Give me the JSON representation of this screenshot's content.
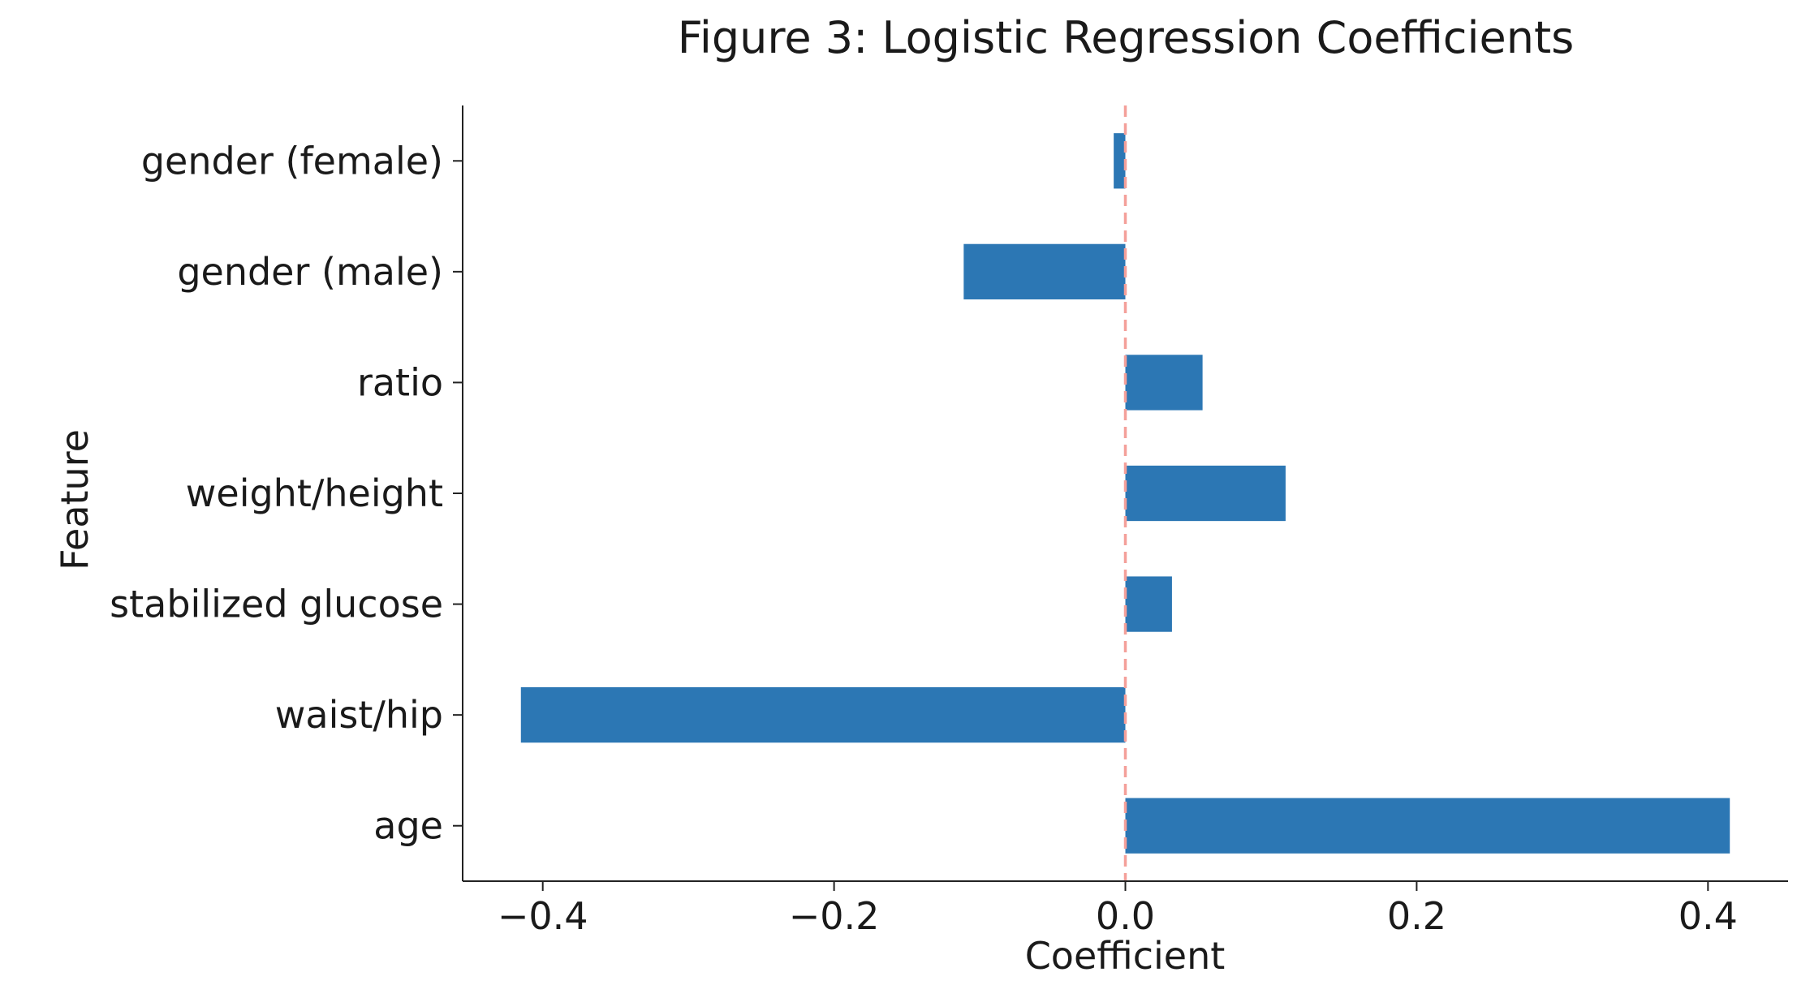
{
  "chart_data": {
    "type": "bar",
    "orientation": "horizontal",
    "title": "Figure 3: Logistic Regression Coefficients",
    "xlabel": "Coefficient",
    "ylabel": "Feature",
    "categories": [
      "age",
      "waist/hip",
      "stabilized glucose",
      "weight/height",
      "ratio",
      "gender (male)",
      "gender (female)"
    ],
    "values": [
      0.415,
      -0.415,
      0.032,
      0.11,
      0.053,
      -0.111,
      -0.008
    ],
    "xlim": [
      -0.455,
      0.455
    ],
    "xticks": [
      -0.4,
      -0.2,
      0.0,
      0.2,
      0.4
    ],
    "xtick_labels": [
      "−0.4",
      "−0.2",
      "0.0",
      "0.2",
      "0.4"
    ],
    "reference_line": {
      "x": 0.0,
      "style": "dashed",
      "color": "#f4a09a"
    },
    "bar_color": "#2c77b4",
    "grid": false
  }
}
